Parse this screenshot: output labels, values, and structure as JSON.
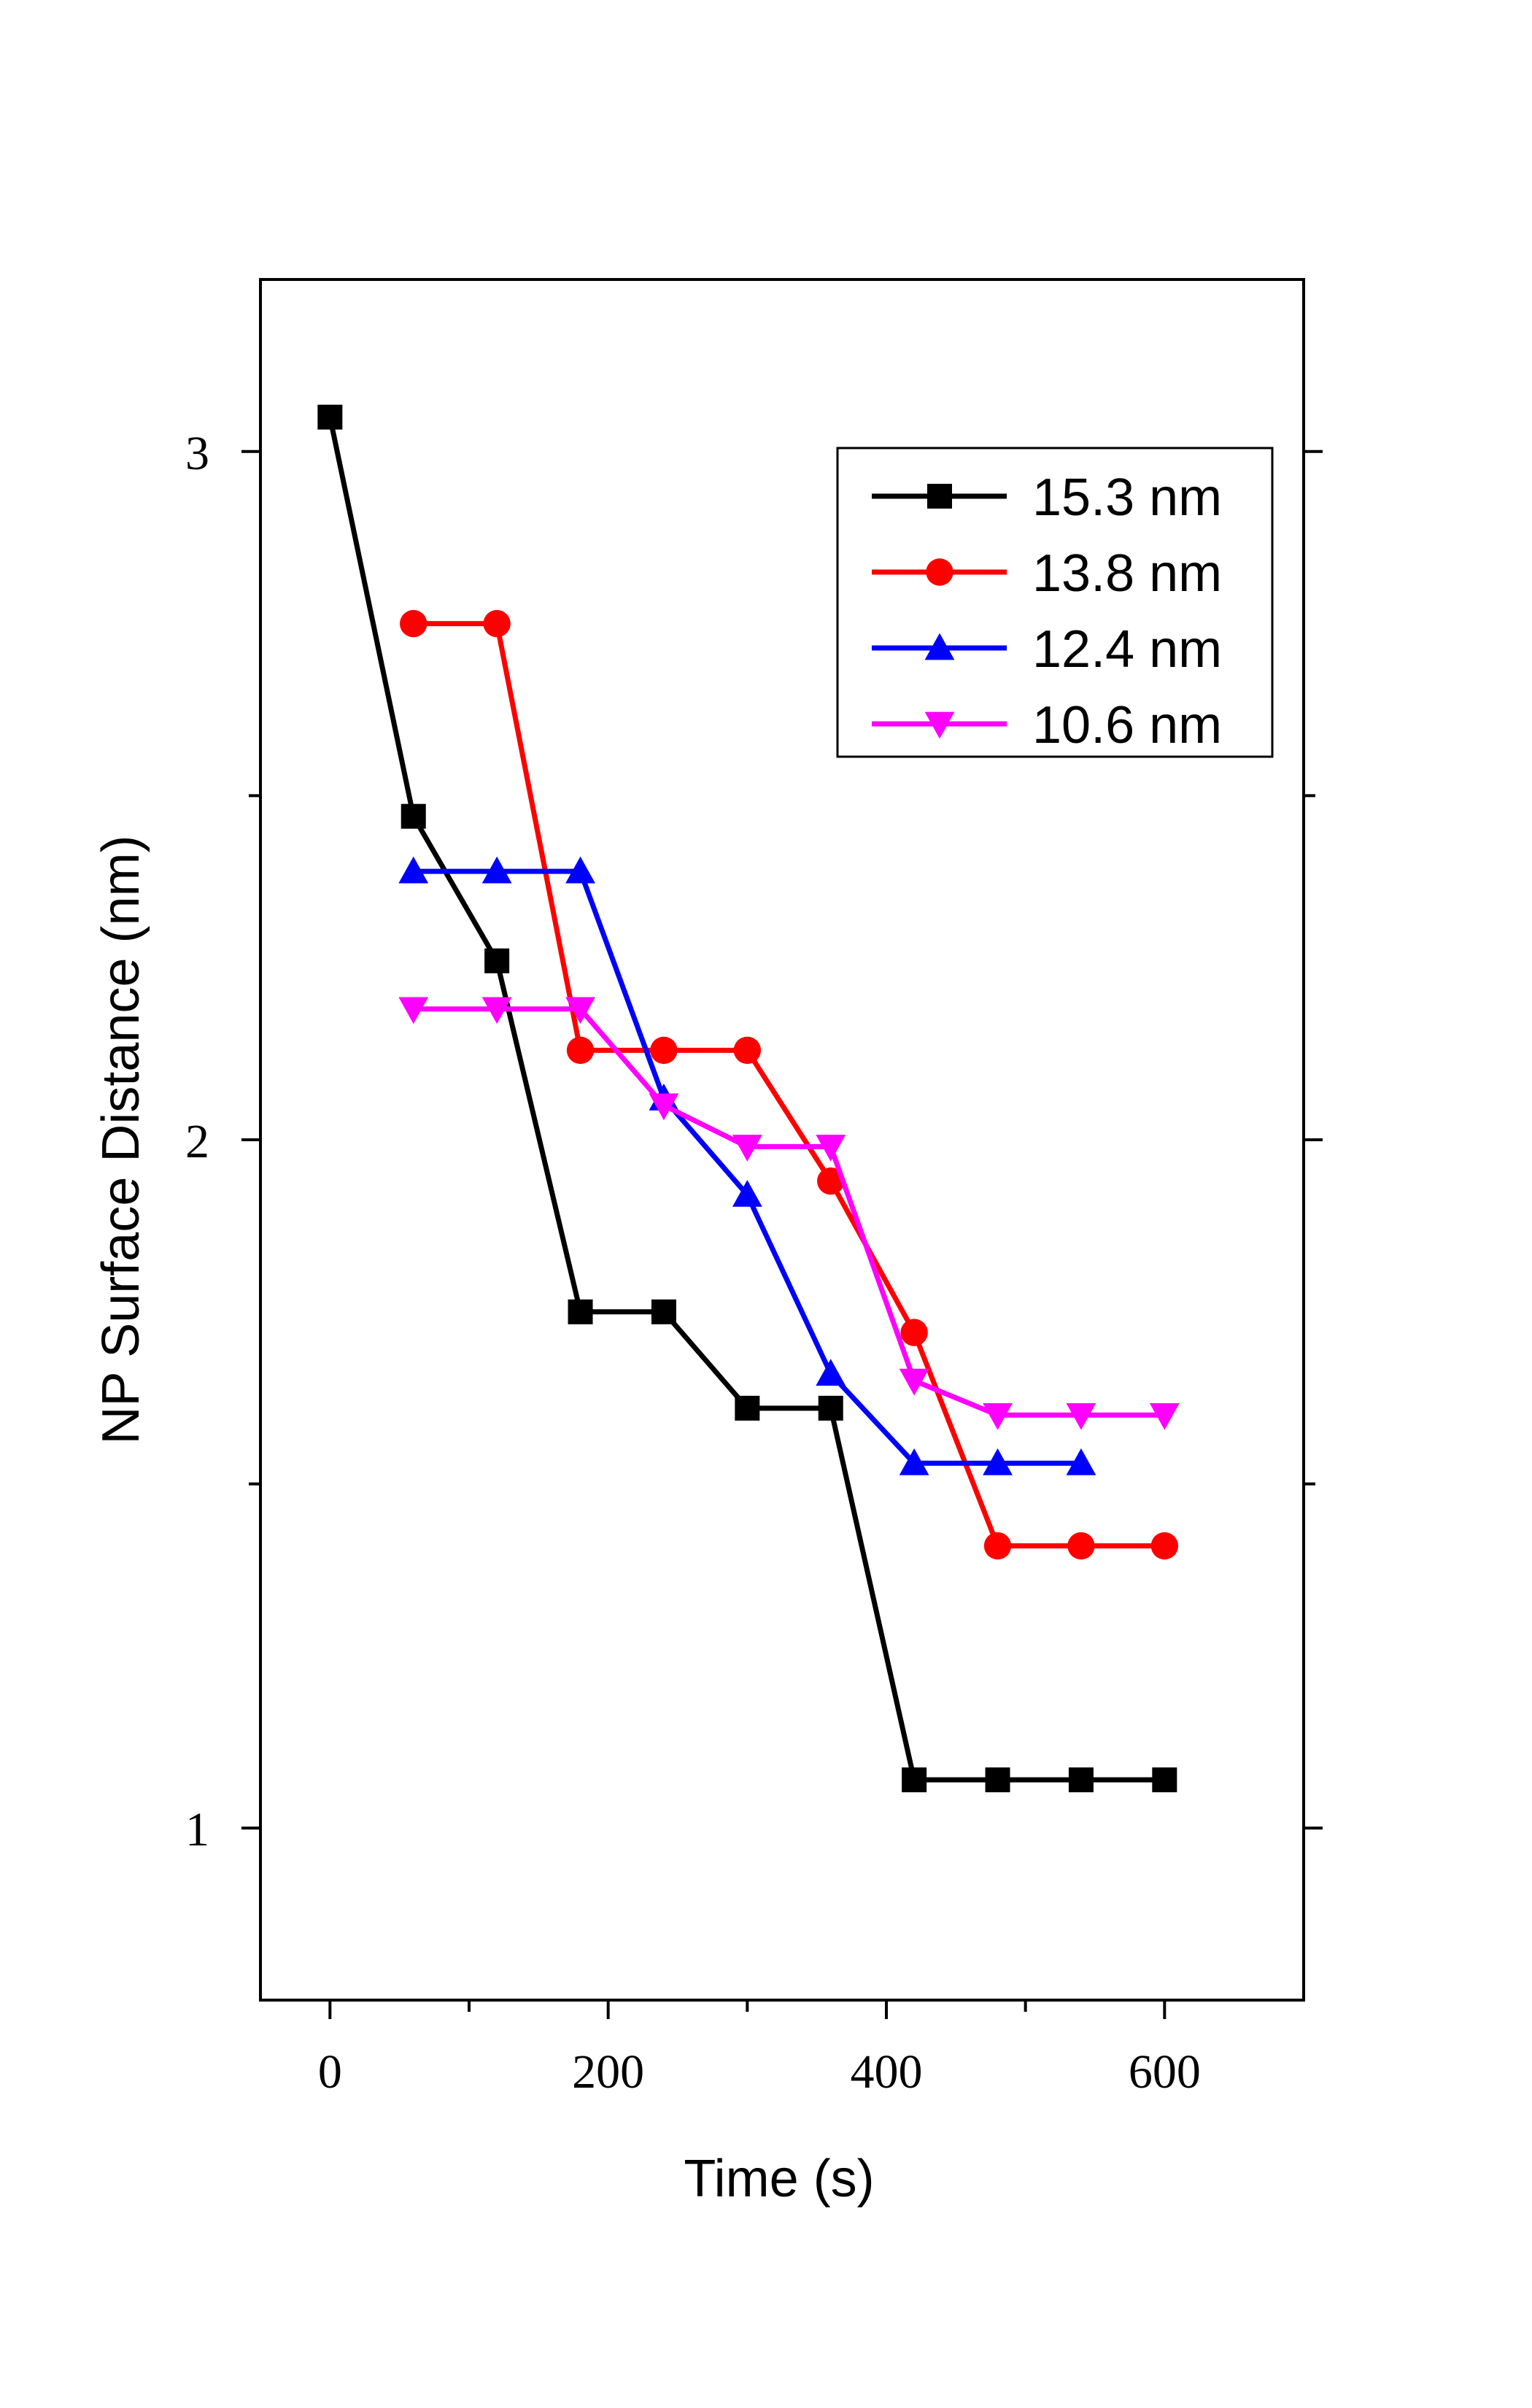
{
  "chart_data": {
    "type": "line",
    "title": "",
    "xlabel": "Time (s)",
    "ylabel": "NP Surface Distance (nm)",
    "xlim": [
      -50,
      700
    ],
    "ylim": [
      0.75,
      3.25
    ],
    "x_ticks": [
      0,
      200,
      400,
      600
    ],
    "x_tick_labels": [
      "0",
      "200",
      "400",
      "600"
    ],
    "y_ticks": [
      1,
      2,
      3
    ],
    "y_tick_labels": [
      "1",
      "2",
      "3"
    ],
    "grid": false,
    "legend_position": "top-right",
    "series": [
      {
        "name": "15.3 nm",
        "color": "#000000",
        "marker": "square",
        "x": [
          0,
          60,
          120,
          180,
          240,
          300,
          360,
          420,
          480,
          540,
          600
        ],
        "y": [
          3.05,
          2.47,
          2.26,
          1.75,
          1.75,
          1.61,
          1.61,
          1.07,
          1.07,
          1.07,
          1.07
        ]
      },
      {
        "name": "13.8 nm",
        "color": "#ff0000",
        "marker": "circle",
        "x": [
          60,
          120,
          180,
          240,
          300,
          360,
          420,
          480,
          540,
          600
        ],
        "y": [
          2.75,
          2.75,
          2.13,
          2.13,
          2.13,
          1.94,
          1.72,
          1.41,
          1.41,
          1.41
        ]
      },
      {
        "name": "12.4 nm",
        "color": "#0000ff",
        "marker": "triangle-up",
        "x": [
          60,
          120,
          180,
          240,
          300,
          360,
          420,
          480,
          540
        ],
        "y": [
          2.39,
          2.39,
          2.39,
          2.06,
          1.92,
          1.66,
          1.53,
          1.53,
          1.53
        ]
      },
      {
        "name": "10.6 nm",
        "color": "#ff00ff",
        "marker": "triangle-down",
        "x": [
          60,
          120,
          180,
          240,
          300,
          360,
          420,
          480,
          540,
          600
        ],
        "y": [
          2.19,
          2.19,
          2.19,
          2.05,
          1.99,
          1.99,
          1.65,
          1.6,
          1.6,
          1.6
        ]
      }
    ]
  }
}
